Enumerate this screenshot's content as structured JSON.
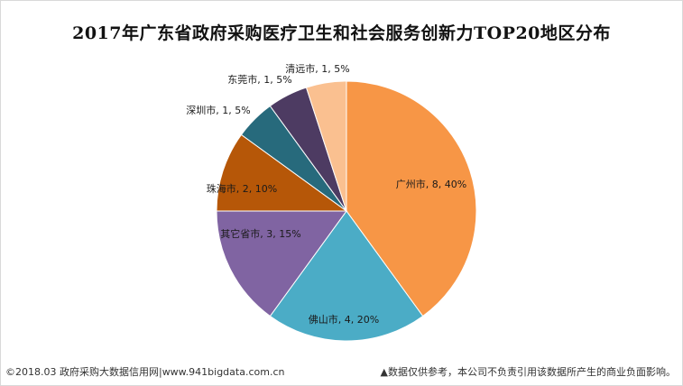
{
  "chart_data": {
    "type": "pie",
    "title": "2017年广东省政府采购医疗卫生和社会服务创新力TOP20地区分布",
    "start_angle_deg": 0,
    "direction": "clockwise",
    "slices": [
      {
        "name": "广州市",
        "value": 8,
        "percent": "40%",
        "label": "广州市, 8, 40%",
        "color": "#f79646"
      },
      {
        "name": "佛山市",
        "value": 4,
        "percent": "20%",
        "label": "佛山市, 4, 20%",
        "color": "#4bacc6"
      },
      {
        "name": "其它省市",
        "value": 3,
        "percent": "15%",
        "label": "其它省市, 3, 15%",
        "color": "#8064a2"
      },
      {
        "name": "珠海市",
        "value": 2,
        "percent": "10%",
        "label": "珠海市, 2, 10%",
        "color": "#b65708"
      },
      {
        "name": "深圳市",
        "value": 1,
        "percent": "5%",
        "label": "深圳市, 1, 5%",
        "color": "#276a7c"
      },
      {
        "name": "东莞市",
        "value": 1,
        "percent": "5%",
        "label": "东莞市, 1, 5%",
        "color": "#4d3b62"
      },
      {
        "name": "清远市",
        "value": 1,
        "percent": "5%",
        "label": "清远市, 1, 5%",
        "color": "#fac090"
      }
    ]
  },
  "footer": {
    "source": "©2018.03 政府采购大数据信用网|www.941bigdata.com.cn",
    "disclaimer": "▲数据仅供参考，本公司不负责引用该数据所产生的商业负面影响。"
  }
}
